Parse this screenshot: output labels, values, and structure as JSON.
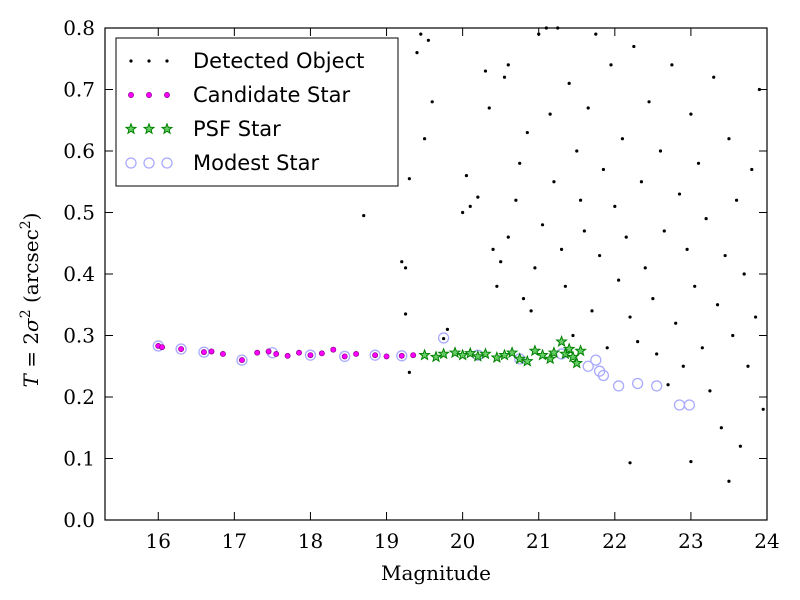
{
  "chart_data": {
    "type": "scatter",
    "xlabel": "Magnitude",
    "ylabel": "T = 2σ² (arcsec²)",
    "ylabel_parts": {
      "T": "T",
      "eq": " = 2",
      "sigma": "σ",
      "exp": "2",
      "unit": " (arcsec",
      "unit_exp": "2",
      "close": ")"
    },
    "xlim": [
      15.3,
      24.0
    ],
    "ylim": [
      0.0,
      0.8
    ],
    "xticks": [
      "16",
      "17",
      "18",
      "19",
      "20",
      "21",
      "22",
      "23",
      "24"
    ],
    "yticks": [
      "0.0",
      "0.1",
      "0.2",
      "0.3",
      "0.4",
      "0.5",
      "0.6",
      "0.7",
      "0.8"
    ],
    "grid": false,
    "legend_position": "top-left",
    "colors": {
      "detected": "#000000",
      "candidate": "#ff00ff",
      "psf": "#008000",
      "modest": "#aaaaff"
    },
    "series": [
      {
        "name": "Detected Object",
        "marker": "dot",
        "points": [
          [
            18.7,
            0.495
          ],
          [
            19.2,
            0.42
          ],
          [
            19.25,
            0.41
          ],
          [
            19.3,
            0.555
          ],
          [
            19.25,
            0.335
          ],
          [
            19.3,
            0.24
          ],
          [
            19.4,
            0.76
          ],
          [
            19.45,
            0.79
          ],
          [
            19.5,
            0.62
          ],
          [
            19.55,
            0.78
          ],
          [
            19.6,
            0.68
          ],
          [
            19.75,
            0.295
          ],
          [
            19.8,
            0.31
          ],
          [
            20.0,
            0.5
          ],
          [
            20.05,
            0.56
          ],
          [
            20.1,
            0.51
          ],
          [
            20.2,
            0.525
          ],
          [
            20.3,
            0.73
          ],
          [
            20.35,
            0.67
          ],
          [
            20.4,
            0.44
          ],
          [
            20.45,
            0.38
          ],
          [
            20.5,
            0.42
          ],
          [
            20.55,
            0.72
          ],
          [
            20.6,
            0.74
          ],
          [
            20.6,
            0.46
          ],
          [
            20.7,
            0.52
          ],
          [
            20.75,
            0.58
          ],
          [
            20.8,
            0.36
          ],
          [
            20.85,
            0.63
          ],
          [
            20.9,
            0.34
          ],
          [
            20.95,
            0.41
          ],
          [
            21.0,
            0.79
          ],
          [
            21.05,
            0.48
          ],
          [
            21.1,
            0.8
          ],
          [
            21.15,
            0.66
          ],
          [
            21.2,
            0.55
          ],
          [
            21.25,
            0.8
          ],
          [
            21.3,
            0.44
          ],
          [
            21.35,
            0.38
          ],
          [
            21.4,
            0.71
          ],
          [
            21.45,
            0.3
          ],
          [
            21.5,
            0.6
          ],
          [
            21.55,
            0.52
          ],
          [
            21.6,
            0.47
          ],
          [
            21.65,
            0.67
          ],
          [
            21.7,
            0.34
          ],
          [
            21.75,
            0.79
          ],
          [
            21.8,
            0.43
          ],
          [
            21.85,
            0.57
          ],
          [
            21.9,
            0.28
          ],
          [
            21.95,
            0.74
          ],
          [
            22.0,
            0.51
          ],
          [
            22.05,
            0.39
          ],
          [
            22.1,
            0.62
          ],
          [
            22.15,
            0.46
          ],
          [
            22.2,
            0.093
          ],
          [
            22.2,
            0.33
          ],
          [
            22.25,
            0.77
          ],
          [
            22.3,
            0.29
          ],
          [
            22.35,
            0.55
          ],
          [
            22.4,
            0.41
          ],
          [
            22.45,
            0.68
          ],
          [
            22.5,
            0.36
          ],
          [
            22.55,
            0.27
          ],
          [
            22.6,
            0.6
          ],
          [
            22.65,
            0.47
          ],
          [
            22.7,
            0.22
          ],
          [
            22.75,
            0.74
          ],
          [
            22.8,
            0.32
          ],
          [
            22.85,
            0.53
          ],
          [
            22.9,
            0.25
          ],
          [
            22.95,
            0.44
          ],
          [
            23.0,
            0.095
          ],
          [
            23.0,
            0.66
          ],
          [
            23.05,
            0.38
          ],
          [
            23.1,
            0.58
          ],
          [
            23.15,
            0.28
          ],
          [
            23.2,
            0.49
          ],
          [
            23.25,
            0.21
          ],
          [
            23.3,
            0.72
          ],
          [
            23.35,
            0.35
          ],
          [
            23.4,
            0.15
          ],
          [
            23.45,
            0.43
          ],
          [
            23.5,
            0.063
          ],
          [
            23.5,
            0.62
          ],
          [
            23.55,
            0.3
          ],
          [
            23.6,
            0.52
          ],
          [
            23.65,
            0.12
          ],
          [
            23.7,
            0.4
          ],
          [
            23.75,
            0.25
          ],
          [
            23.8,
            0.57
          ],
          [
            23.85,
            0.33
          ],
          [
            23.9,
            0.7
          ],
          [
            23.95,
            0.18
          ]
        ]
      },
      {
        "name": "Candidate Star",
        "marker": "circle",
        "points": [
          [
            16.0,
            0.283
          ],
          [
            16.05,
            0.281
          ],
          [
            16.3,
            0.278
          ],
          [
            16.6,
            0.273
          ],
          [
            16.7,
            0.274
          ],
          [
            16.85,
            0.27
          ],
          [
            17.1,
            0.26
          ],
          [
            17.3,
            0.272
          ],
          [
            17.45,
            0.274
          ],
          [
            17.55,
            0.27
          ],
          [
            17.7,
            0.267
          ],
          [
            17.85,
            0.272
          ],
          [
            18.0,
            0.268
          ],
          [
            18.15,
            0.271
          ],
          [
            18.3,
            0.277
          ],
          [
            18.45,
            0.266
          ],
          [
            18.6,
            0.27
          ],
          [
            18.85,
            0.268
          ],
          [
            19.0,
            0.266
          ],
          [
            19.2,
            0.267
          ],
          [
            19.35,
            0.268
          ]
        ]
      },
      {
        "name": "PSF Star",
        "marker": "star",
        "points": [
          [
            19.5,
            0.268
          ],
          [
            19.65,
            0.265
          ],
          [
            19.75,
            0.27
          ],
          [
            19.9,
            0.272
          ],
          [
            20.0,
            0.268
          ],
          [
            20.1,
            0.271
          ],
          [
            20.2,
            0.266
          ],
          [
            20.3,
            0.27
          ],
          [
            20.45,
            0.264
          ],
          [
            20.55,
            0.268
          ],
          [
            20.65,
            0.272
          ],
          [
            20.75,
            0.262
          ],
          [
            20.85,
            0.258
          ],
          [
            20.95,
            0.275
          ],
          [
            21.05,
            0.268
          ],
          [
            21.15,
            0.262
          ],
          [
            21.2,
            0.272
          ],
          [
            21.3,
            0.29
          ],
          [
            21.35,
            0.27
          ],
          [
            21.4,
            0.278
          ],
          [
            21.45,
            0.265
          ],
          [
            21.5,
            0.255
          ],
          [
            21.55,
            0.275
          ]
        ]
      },
      {
        "name": "Modest Star",
        "marker": "open-circle",
        "points": [
          [
            16.0,
            0.283
          ],
          [
            16.3,
            0.278
          ],
          [
            16.6,
            0.273
          ],
          [
            17.1,
            0.26
          ],
          [
            17.5,
            0.272
          ],
          [
            18.0,
            0.268
          ],
          [
            18.45,
            0.266
          ],
          [
            18.85,
            0.268
          ],
          [
            19.2,
            0.267
          ],
          [
            19.75,
            0.296
          ],
          [
            20.2,
            0.268
          ],
          [
            20.75,
            0.262
          ],
          [
            21.3,
            0.27
          ],
          [
            21.65,
            0.25
          ],
          [
            21.75,
            0.26
          ],
          [
            21.8,
            0.242
          ],
          [
            21.85,
            0.235
          ],
          [
            22.05,
            0.218
          ],
          [
            22.3,
            0.222
          ],
          [
            22.55,
            0.218
          ],
          [
            22.85,
            0.187
          ],
          [
            22.98,
            0.187
          ]
        ]
      }
    ]
  }
}
